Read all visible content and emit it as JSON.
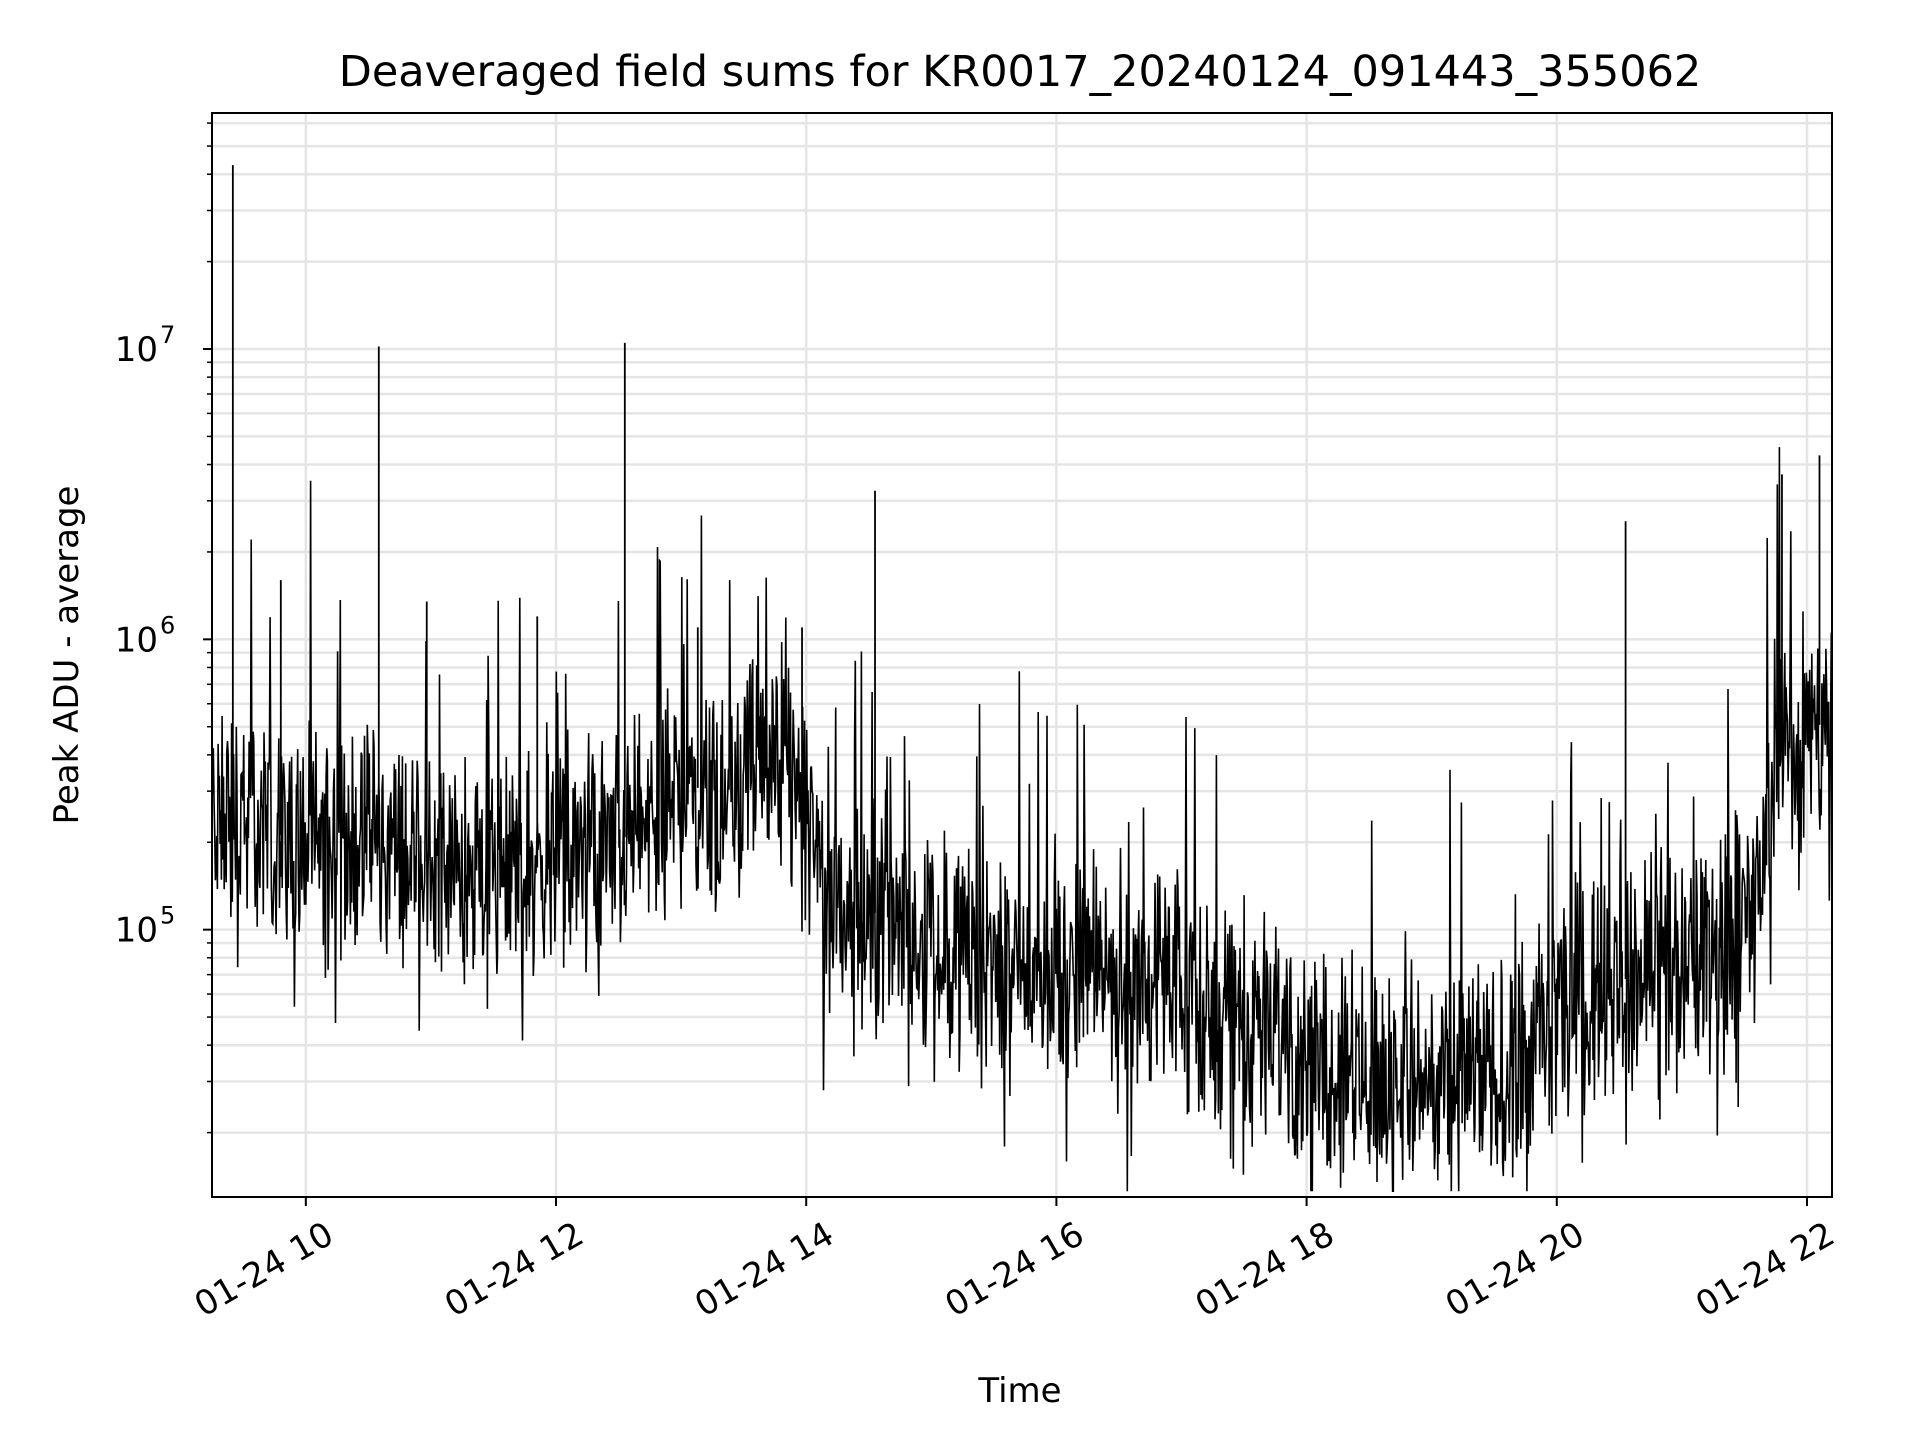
{
  "chart_data": {
    "type": "line",
    "title": "Deaveraged field sums for KR0017_20240124_091443_355062",
    "xlabel": "Time",
    "ylabel": "Peak ADU - average",
    "yscale": "log",
    "grid": true,
    "line_color": "#000000",
    "grid_color": "#e5e5e5",
    "xlim": [
      "2024-01-24 09:15",
      "2024-01-24 22:12"
    ],
    "ylim": [
      12000,
      65000000
    ],
    "x_ticks": [
      {
        "value": "2024-01-24 10:00",
        "label": "01-24 10"
      },
      {
        "value": "2024-01-24 12:00",
        "label": "01-24 12"
      },
      {
        "value": "2024-01-24 14:00",
        "label": "01-24 14"
      },
      {
        "value": "2024-01-24 16:00",
        "label": "01-24 16"
      },
      {
        "value": "2024-01-24 18:00",
        "label": "01-24 18"
      },
      {
        "value": "2024-01-24 20:00",
        "label": "01-24 20"
      },
      {
        "value": "2024-01-24 22:00",
        "label": "01-24 22"
      }
    ],
    "y_ticks": [
      {
        "value": 100000,
        "base": "10",
        "exp": "5"
      },
      {
        "value": 1000000,
        "base": "10",
        "exp": "6"
      },
      {
        "value": 10000000,
        "base": "10",
        "exp": "7"
      }
    ],
    "series": [
      {
        "x": [
          "2024-01-24 09:15",
          "2024-01-24 09:30",
          "2024-01-24 09:50",
          "2024-01-24 10:15",
          "2024-01-24 10:40",
          "2024-01-24 11:00",
          "2024-01-24 11:30",
          "2024-01-24 12:00",
          "2024-01-24 12:30",
          "2024-01-24 13:00",
          "2024-01-24 13:30",
          "2024-01-24 13:50",
          "2024-01-24 14:10",
          "2024-01-24 14:40",
          "2024-01-24 15:10",
          "2024-01-24 15:40",
          "2024-01-24 16:10",
          "2024-01-24 16:40",
          "2024-01-24 17:10",
          "2024-01-24 17:40",
          "2024-01-24 18:15",
          "2024-01-24 18:40",
          "2024-01-24 19:10",
          "2024-01-24 19:40",
          "2024-01-24 20:10",
          "2024-01-24 20:40",
          "2024-01-24 21:10",
          "2024-01-24 21:35",
          "2024-01-24 21:45",
          "2024-01-24 22:00",
          "2024-01-24 22:12"
        ],
        "y": [
          250000,
          230000,
          210000,
          200000,
          190000,
          170000,
          150000,
          170000,
          200000,
          300000,
          330000,
          380000,
          130000,
          110000,
          85000,
          70000,
          72000,
          68000,
          55000,
          48000,
          32000,
          31000,
          30000,
          33000,
          60000,
          70000,
          85000,
          110000,
          420000,
          460000,
          560000
        ]
      }
    ],
    "spikes": [
      {
        "x": "2024-01-24 09:25",
        "y": 43000000
      },
      {
        "x": "2024-01-24 10:35",
        "y": 10200000
      },
      {
        "x": "2024-01-24 12:33",
        "y": 10500000
      },
      {
        "x": "2024-01-24 14:33",
        "y": 3250000
      },
      {
        "x": "2024-01-24 20:33",
        "y": 2550000
      },
      {
        "x": "2024-01-24 21:48",
        "y": 3700000
      },
      {
        "x": "2024-01-24 22:06",
        "y": 4300000
      },
      {
        "x": "2024-01-24 09:48",
        "y": 1600000
      },
      {
        "x": "2024-01-24 10:58",
        "y": 1350000
      },
      {
        "x": "2024-01-24 11:51",
        "y": 1200000
      },
      {
        "x": "2024-01-24 13:08",
        "y": 1100000
      },
      {
        "x": "2024-01-24 13:58",
        "y": 1100000
      }
    ]
  }
}
